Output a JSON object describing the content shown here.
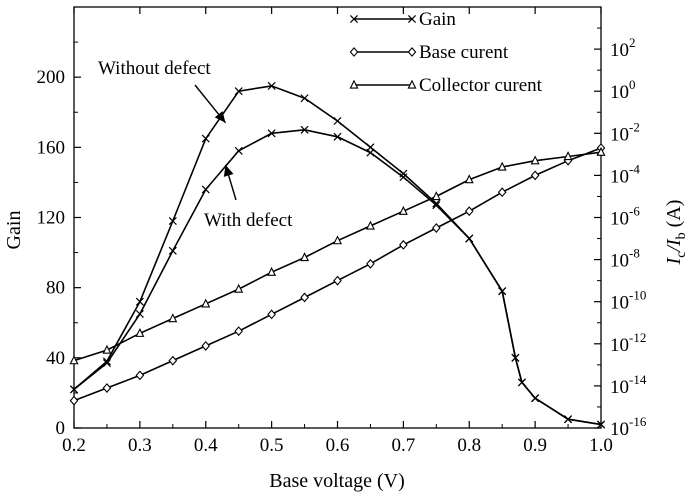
{
  "chart_data": {
    "type": "line",
    "xlabel": "Base voltage (V)",
    "ylabel_left": "Gain",
    "ylabel_right": {
      "main": "I",
      "sub1": "c",
      "mid": "I",
      "sub2": "b",
      "unit": " (A)"
    },
    "xlim": [
      0.2,
      1.0
    ],
    "ylim_left": [
      0,
      240
    ],
    "ylim_right_log10": [
      -16,
      4
    ],
    "right_scale": "log",
    "grid": false,
    "legend_position": "top-right",
    "x_ticks": [
      0.2,
      0.3,
      0.4,
      0.5,
      0.6,
      0.7,
      0.8,
      0.9,
      1.0
    ],
    "x_tick_labels": [
      "0.2",
      "0.3",
      "0.4",
      "0.5",
      "0.6",
      "0.7",
      "0.8",
      "0.9",
      "1.0"
    ],
    "y_left_ticks": [
      0,
      40,
      80,
      120,
      160,
      200
    ],
    "y_left_tick_labels": [
      "0",
      "40",
      "80",
      "120",
      "160",
      "200"
    ],
    "y_right_tick_exponents": [
      -16,
      -14,
      -12,
      -10,
      -8,
      -6,
      -4,
      -2,
      0,
      2
    ],
    "y_right_tick_labels": [
      "-16",
      "-14",
      "-12",
      "-10",
      "-8",
      "-6",
      "-4",
      "-2",
      "0",
      "2"
    ],
    "y_right_tick_base": "10",
    "legend": [
      {
        "label": "Gain",
        "marker": "x"
      },
      {
        "label": "Base curent",
        "marker": "diamond"
      },
      {
        "label": "Collector curent",
        "marker": "triangle"
      }
    ],
    "annotations": [
      {
        "text": "Without defect",
        "arrow_to": {
          "x": 0.43,
          "y": 174
        }
      },
      {
        "text": "With defect",
        "arrow_to": {
          "x": 0.43,
          "y": 150
        }
      }
    ],
    "series": [
      {
        "name": "Gain",
        "axis": "left",
        "marker": "x",
        "curves": [
          {
            "x": [
              0.2,
              0.25,
              0.3,
              0.35,
              0.4,
              0.45,
              0.5,
              0.55,
              0.6,
              0.65,
              0.7,
              0.75,
              0.8,
              0.85,
              0.87,
              0.88,
              0.9,
              0.95,
              1.0
            ],
            "y": [
              22,
              38,
              72,
              118,
              165,
              192,
              195,
              188,
              175,
              160,
              145,
              128,
              108,
              78,
              40,
              26,
              17,
              5,
              2
            ]
          },
          {
            "x": [
              0.2,
              0.25,
              0.3,
              0.35,
              0.4,
              0.45,
              0.5,
              0.55,
              0.6,
              0.65,
              0.7,
              0.75,
              0.8,
              0.85,
              0.87,
              0.88,
              0.9,
              0.95,
              1.0
            ],
            "y": [
              22,
              37,
              65,
              101,
              136,
              158,
              168,
              170,
              166,
              157,
              143,
              127,
              108,
              78,
              40,
              26,
              17,
              5,
              2
            ]
          }
        ]
      },
      {
        "name": "Base curent",
        "axis": "right",
        "marker": "diamond",
        "curves": [
          {
            "x": [
              0.2,
              0.25,
              0.3,
              0.35,
              0.4,
              0.45,
              0.5,
              0.55,
              0.6,
              0.65,
              0.7,
              0.75,
              0.8,
              0.85,
              0.9,
              0.95,
              1.0
            ],
            "log10_y": [
              -14.7,
              -14.1,
              -13.5,
              -12.8,
              -12.1,
              -11.4,
              -10.6,
              -9.8,
              -9.0,
              -8.2,
              -7.3,
              -6.5,
              -5.7,
              -4.8,
              -4.0,
              -3.3,
              -2.7
            ]
          }
        ]
      },
      {
        "name": "Collector curent",
        "axis": "right",
        "marker": "triangle",
        "curves": [
          {
            "x": [
              0.2,
              0.25,
              0.3,
              0.35,
              0.4,
              0.45,
              0.5,
              0.55,
              0.6,
              0.65,
              0.7,
              0.75,
              0.8,
              0.85,
              0.9,
              0.95,
              1.0
            ],
            "log10_y": [
              -12.8,
              -12.3,
              -11.5,
              -10.8,
              -10.1,
              -9.4,
              -8.6,
              -7.9,
              -7.1,
              -6.4,
              -5.7,
              -5.0,
              -4.2,
              -3.6,
              -3.3,
              -3.1,
              -2.9
            ]
          }
        ]
      }
    ]
  }
}
